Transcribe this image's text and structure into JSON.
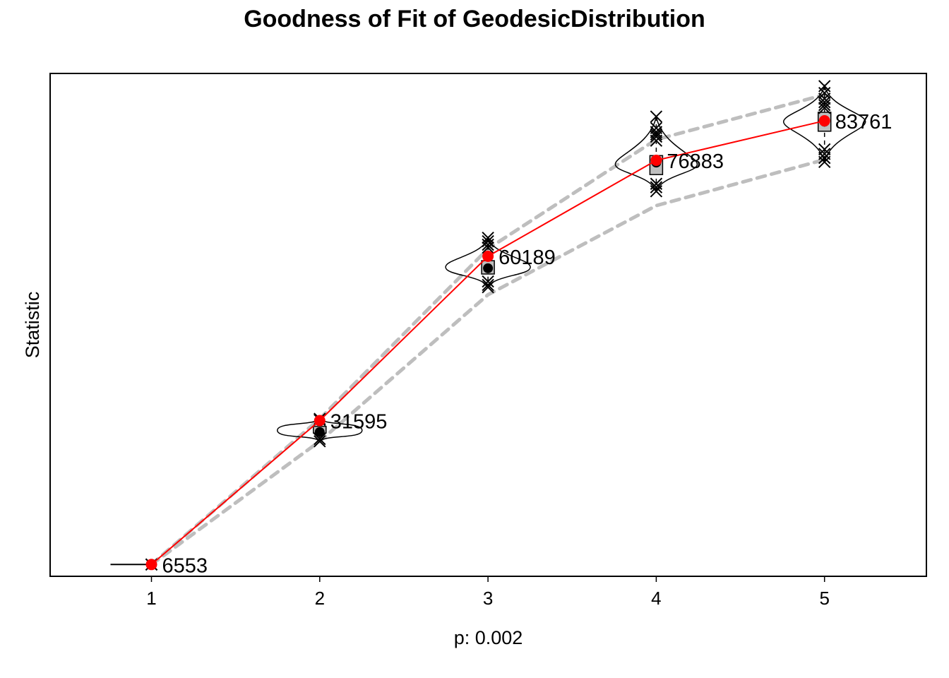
{
  "chart_data": {
    "type": "violin",
    "title": "Goodness of Fit of GeodesicDistribution",
    "xlabel": "p: 0.002",
    "ylabel": "Statistic",
    "categories": [
      "1",
      "2",
      "3",
      "4",
      "5"
    ],
    "ylim": [
      4500,
      92000
    ],
    "y_ticks_shown": false,
    "grid": false,
    "legend": "none",
    "observed": {
      "color": "#ff0000",
      "values": [
        6553,
        31595,
        60189,
        76883,
        83761
      ],
      "labels": [
        "6553",
        "31595",
        "60189",
        "76883",
        "83761"
      ]
    },
    "simulated_median": [
      6553,
      29900,
      58300,
      76200,
      83600
    ],
    "simulated_mean": [
      6553,
      29600,
      58100,
      76500,
      83600
    ],
    "envelope": {
      "color": "#bebebe",
      "lower": [
        6553,
        28000,
        53500,
        69000,
        77000
      ],
      "upper": [
        6553,
        31900,
        61500,
        80500,
        88300
      ]
    },
    "outliers": [
      [
        6553,
        6553,
        6553
      ],
      [
        31900,
        31700,
        28000,
        28400
      ],
      [
        63400,
        62800,
        62200,
        61700,
        55800,
        55200,
        54800
      ],
      [
        84500,
        82500,
        81800,
        81400,
        81000,
        80300,
        72800,
        72200,
        71500
      ],
      [
        89800,
        88600,
        87600,
        87000,
        86500,
        86000,
        78800,
        78000,
        77300,
        76600
      ]
    ]
  }
}
